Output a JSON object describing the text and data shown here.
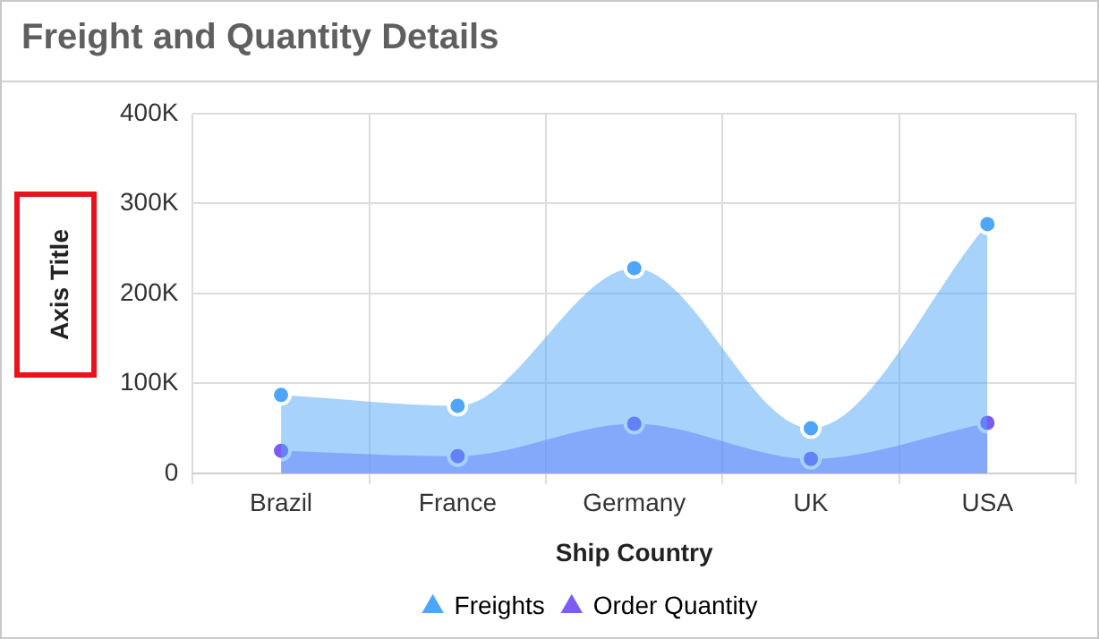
{
  "chart_data": {
    "type": "area",
    "title": "Freight and Quantity Details",
    "xlabel": "Ship Country",
    "ylabel": "Axis Title",
    "categories": [
      "Brazil",
      "France",
      "Germany",
      "UK",
      "USA"
    ],
    "series": [
      {
        "name": "Freights",
        "color": "#4da6f9",
        "values": [
          87000,
          75000,
          228000,
          50000,
          277000
        ]
      },
      {
        "name": "Order Quantity",
        "color": "#7c5cf5",
        "values": [
          25000,
          19000,
          55000,
          16000,
          56000
        ]
      }
    ],
    "ylim": [
      0,
      400000
    ],
    "yticks": [
      {
        "value": 0,
        "label": "0"
      },
      {
        "value": 100000,
        "label": "100K"
      },
      {
        "value": 200000,
        "label": "200K"
      },
      {
        "value": 300000,
        "label": "300K"
      },
      {
        "value": 400000,
        "label": "400K"
      }
    ],
    "grid": true,
    "legend": "bottom",
    "marker": "circle"
  }
}
